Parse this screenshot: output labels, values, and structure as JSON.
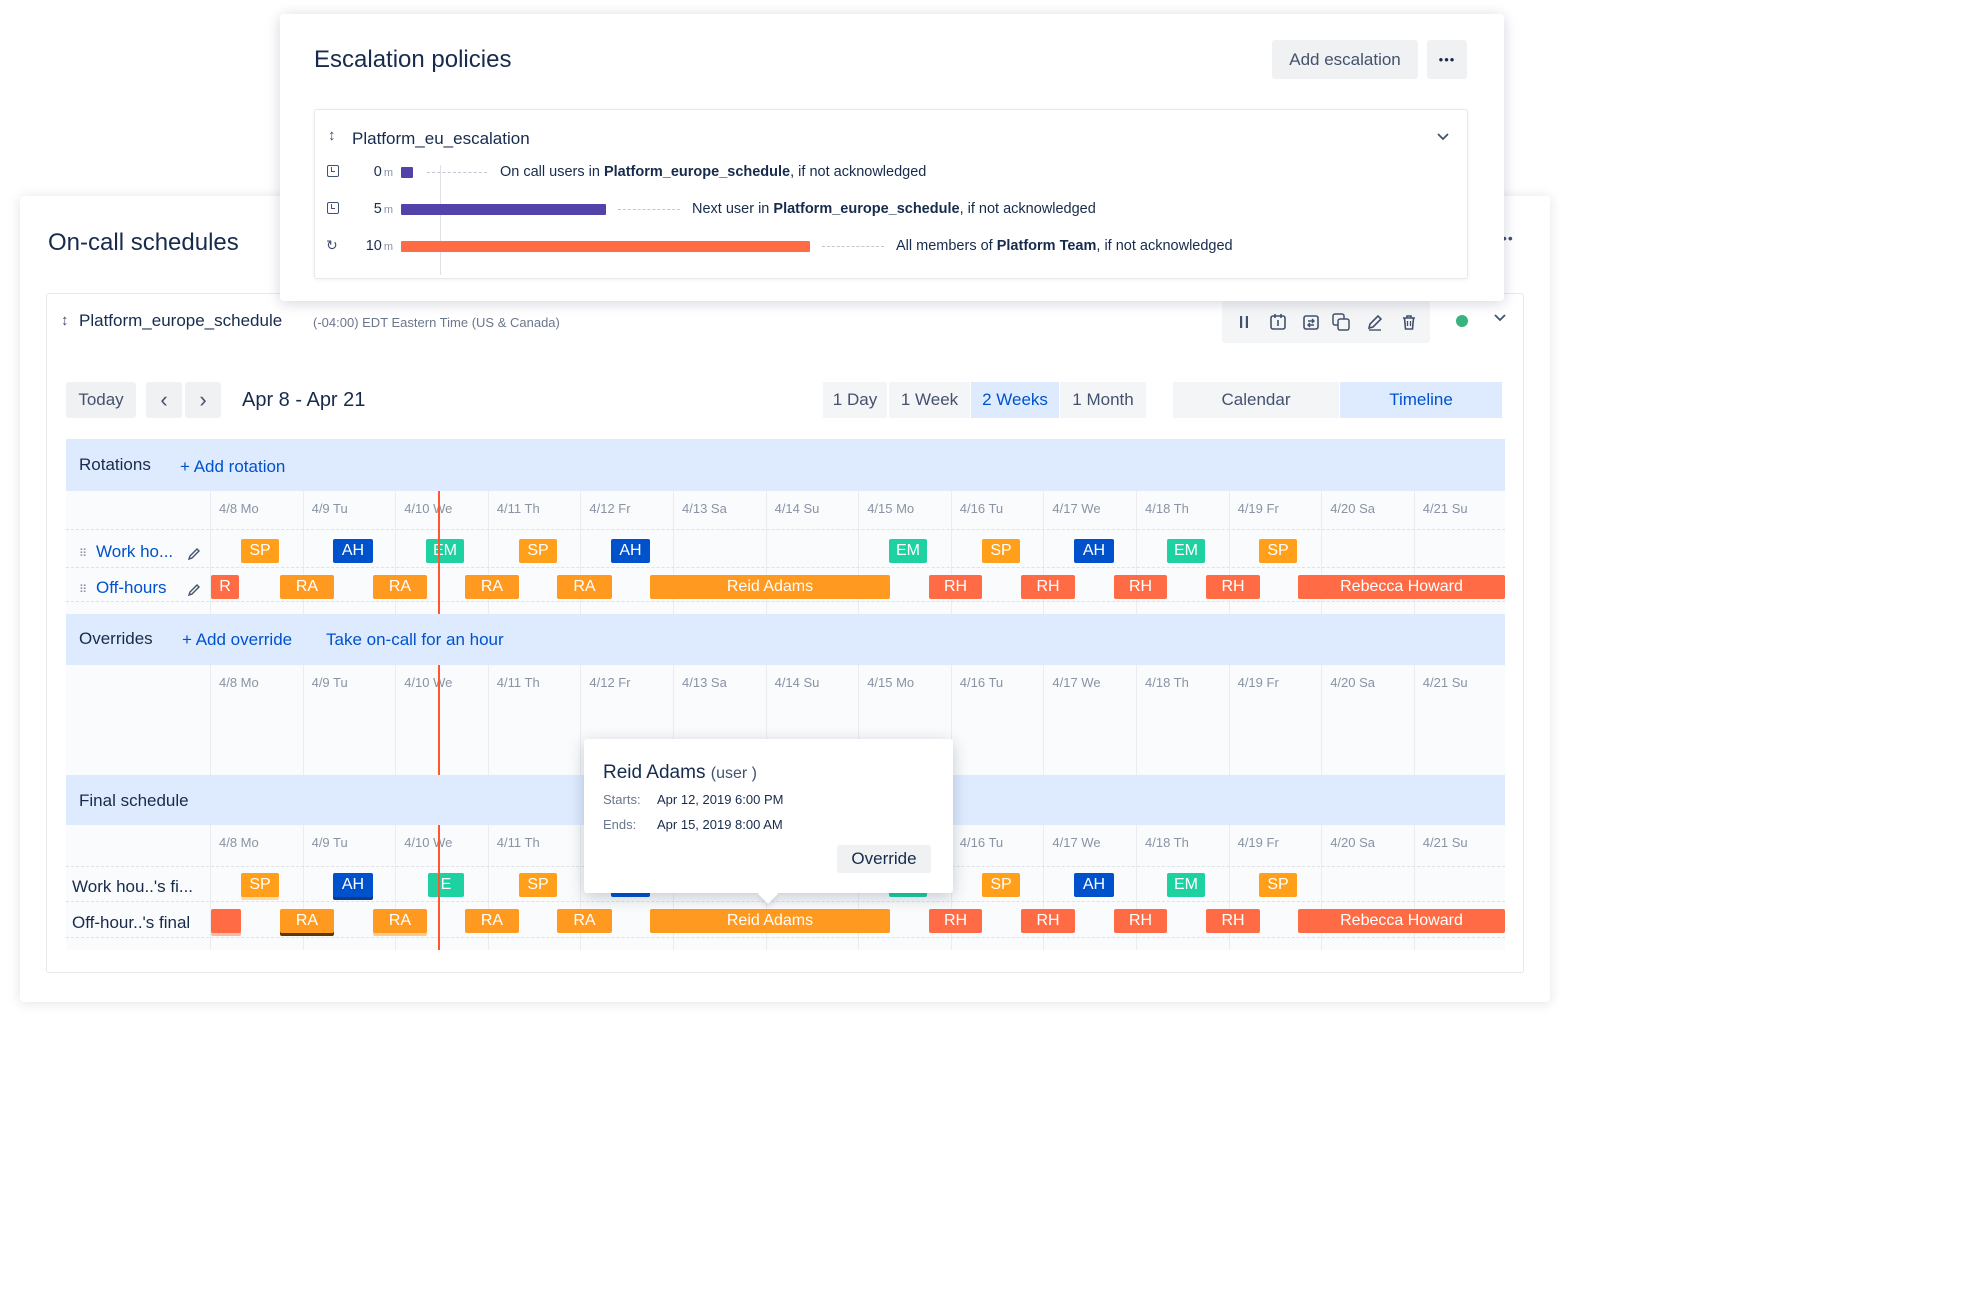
{
  "escalation": {
    "title": "Escalation policies",
    "add_button": "Add escalation",
    "more_button": "•••",
    "policy_name": "Platform_eu_escalation",
    "steps": [
      {
        "time": "0",
        "unit": "m",
        "pre": "On call users in ",
        "bold": "Platform_europe_schedule",
        "post": ", if not acknowledged",
        "color": "#5243aa"
      },
      {
        "time": "5",
        "unit": "m",
        "pre": "Next user in ",
        "bold": "Platform_europe_schedule",
        "post": ", if not acknowledged",
        "color": "#5243aa"
      },
      {
        "time": "10",
        "unit": "m",
        "pre": "All members of ",
        "bold": "Platform Team",
        "post": ", if not acknowledged",
        "color": "#ff6b45"
      }
    ]
  },
  "schedules": {
    "title": "On-call schedules",
    "schedule_name": "Platform_europe_schedule",
    "timezone": "(-04:00) EDT Eastern Time (US & Canada)",
    "status_color": "#36b37e",
    "today_button": "Today",
    "prev": "‹",
    "next": "›",
    "date_range": "Apr 8 - Apr 21",
    "range_tabs": [
      "1 Day",
      "1 Week",
      "2 Weeks",
      "1 Month"
    ],
    "selected_range": "2 Weeks",
    "view_tabs": [
      "Calendar",
      "Timeline"
    ],
    "selected_view": "Timeline",
    "days": [
      "4/8 Mo",
      "4/9 Tu",
      "4/10 We",
      "4/11 Th",
      "4/12 Fr",
      "4/13 Sa",
      "4/14 Su",
      "4/15 Mo",
      "4/16 Tu",
      "4/17 We",
      "4/18 Th",
      "4/19 Fr",
      "4/20 Sa",
      "4/21 Su"
    ]
  },
  "rotations": {
    "title": "Rotations",
    "add_link": "+ Add rotation",
    "rows": [
      {
        "label": "Work ho...",
        "chips": [
          "SP",
          "AH",
          "EM",
          "SP",
          "AH",
          "EM",
          "SP",
          "AH",
          "EM",
          "SP"
        ]
      },
      {
        "label": "Off-hours",
        "chips": [
          "R",
          "RA",
          "RA",
          "RA",
          "RA",
          "Reid Adams",
          "RH",
          "RH",
          "RH",
          "RH",
          "Rebecca Howard"
        ]
      }
    ]
  },
  "overrides": {
    "title": "Overrides",
    "add_link": "+ Add override",
    "take_link": "Take on-call for an hour"
  },
  "final": {
    "title": "Final schedule",
    "rows": [
      {
        "label": "Work hou..'s fi...",
        "chips": [
          "SP",
          "AH",
          "E",
          "SP",
          "SP",
          "AH",
          "EM",
          "SP"
        ]
      },
      {
        "label": "Off-hour..'s final",
        "chips": [
          "RA",
          "RA",
          "RA",
          "RA",
          "Reid Adams",
          "RH",
          "RH",
          "RH",
          "RH",
          "Rebecca Howard"
        ]
      }
    ]
  },
  "tooltip": {
    "name": "Reid Adams",
    "role": "(user )",
    "starts_label": "Starts:",
    "starts_value": "Apr 12, 2019 6:00 PM",
    "ends_label": "Ends:",
    "ends_value": "Apr 15, 2019 8:00 AM",
    "override_button": "Override"
  },
  "colors": {
    "accent": "#0052cc",
    "now_line": "#ff5630",
    "sp": "#ff9f1a",
    "ah": "#0052cc",
    "em": "#1dd1a1",
    "ra": "#ff991f",
    "rh": "#ff6b45"
  }
}
